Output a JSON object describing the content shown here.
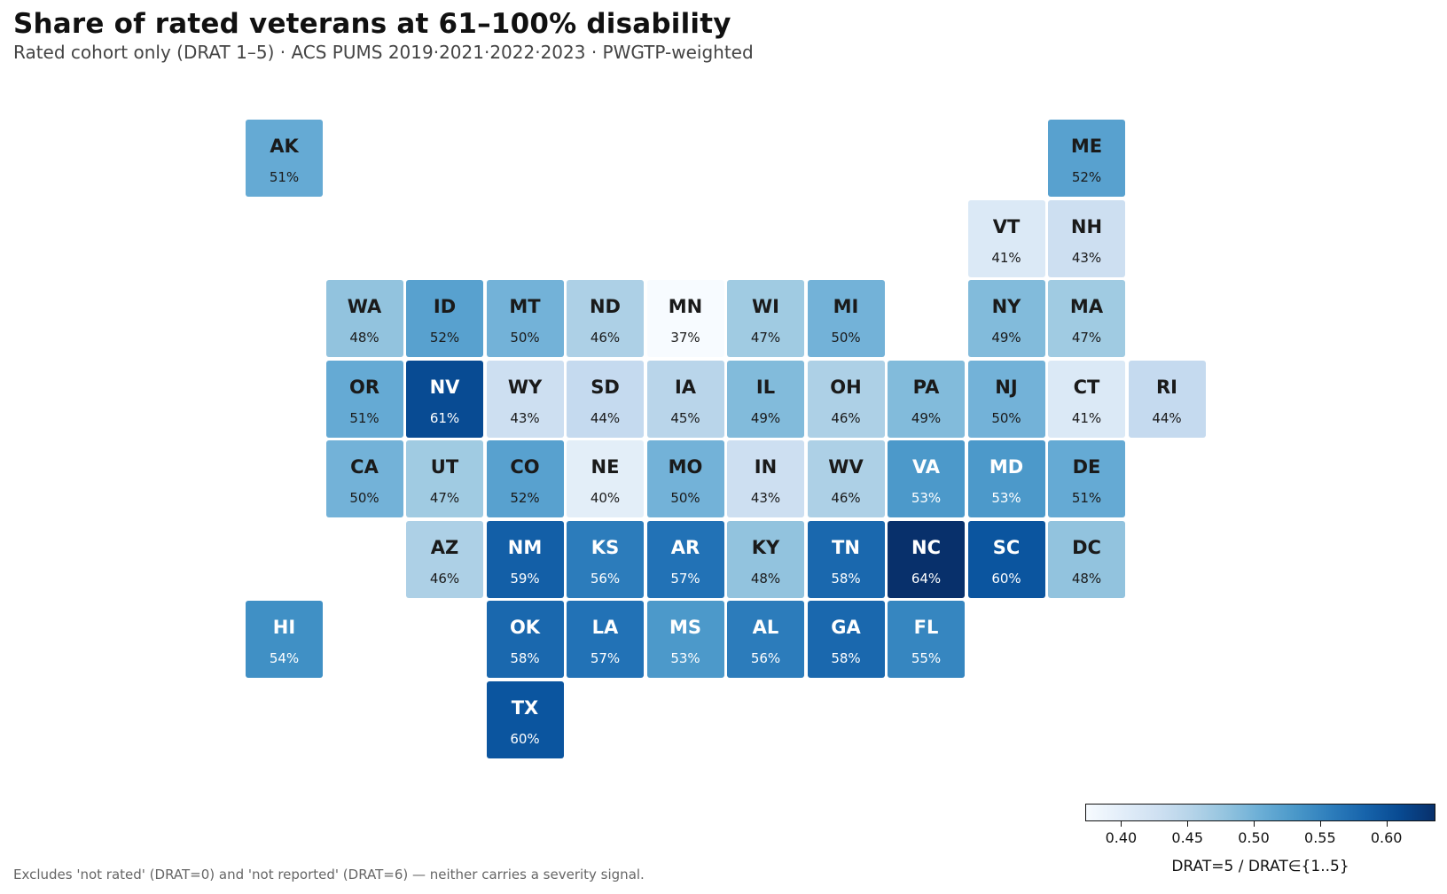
{
  "title": "Share of rated veterans at 61–100% disability",
  "subtitle": "Rated cohort only (DRAT 1–5) · ACS PUMS 2019·2021·2022·2023 · PWGTP-weighted",
  "footnote": "Excludes 'not rated' (DRAT=0) and 'not reported' (DRAT=6) — neither carries a severity signal.",
  "colorbar": {
    "label": "DRAT=5 / DRAT∈{1..5}",
    "min": 0.373,
    "max": 0.637,
    "ticks": [
      "0.40",
      "0.45",
      "0.50",
      "0.55",
      "0.60"
    ],
    "color_low": "#f7fbff",
    "color_high": "#08306b"
  },
  "chart_data": {
    "type": "heatmap",
    "layout": "tile-grid map of U.S. states",
    "states": [
      {
        "abbr": "AK",
        "pct_label": "51%",
        "value": 0.51,
        "row": 0,
        "col": 0
      },
      {
        "abbr": "ME",
        "pct_label": "52%",
        "value": 0.52,
        "row": 0,
        "col": 10
      },
      {
        "abbr": "VT",
        "pct_label": "41%",
        "value": 0.41,
        "row": 1,
        "col": 9
      },
      {
        "abbr": "NH",
        "pct_label": "43%",
        "value": 0.43,
        "row": 1,
        "col": 10
      },
      {
        "abbr": "WA",
        "pct_label": "48%",
        "value": 0.48,
        "row": 2,
        "col": 1
      },
      {
        "abbr": "ID",
        "pct_label": "52%",
        "value": 0.52,
        "row": 2,
        "col": 2
      },
      {
        "abbr": "MT",
        "pct_label": "50%",
        "value": 0.5,
        "row": 2,
        "col": 3
      },
      {
        "abbr": "ND",
        "pct_label": "46%",
        "value": 0.46,
        "row": 2,
        "col": 4
      },
      {
        "abbr": "MN",
        "pct_label": "37%",
        "value": 0.37,
        "row": 2,
        "col": 5
      },
      {
        "abbr": "WI",
        "pct_label": "47%",
        "value": 0.47,
        "row": 2,
        "col": 6
      },
      {
        "abbr": "MI",
        "pct_label": "50%",
        "value": 0.5,
        "row": 2,
        "col": 7
      },
      {
        "abbr": "NY",
        "pct_label": "49%",
        "value": 0.49,
        "row": 2,
        "col": 9
      },
      {
        "abbr": "MA",
        "pct_label": "47%",
        "value": 0.47,
        "row": 2,
        "col": 10
      },
      {
        "abbr": "OR",
        "pct_label": "51%",
        "value": 0.51,
        "row": 3,
        "col": 1
      },
      {
        "abbr": "NV",
        "pct_label": "61%",
        "value": 0.61,
        "row": 3,
        "col": 2
      },
      {
        "abbr": "WY",
        "pct_label": "43%",
        "value": 0.43,
        "row": 3,
        "col": 3
      },
      {
        "abbr": "SD",
        "pct_label": "44%",
        "value": 0.44,
        "row": 3,
        "col": 4
      },
      {
        "abbr": "IA",
        "pct_label": "45%",
        "value": 0.45,
        "row": 3,
        "col": 5
      },
      {
        "abbr": "IL",
        "pct_label": "49%",
        "value": 0.49,
        "row": 3,
        "col": 6
      },
      {
        "abbr": "OH",
        "pct_label": "46%",
        "value": 0.46,
        "row": 3,
        "col": 7
      },
      {
        "abbr": "PA",
        "pct_label": "49%",
        "value": 0.49,
        "row": 3,
        "col": 8
      },
      {
        "abbr": "NJ",
        "pct_label": "50%",
        "value": 0.5,
        "row": 3,
        "col": 9
      },
      {
        "abbr": "CT",
        "pct_label": "41%",
        "value": 0.41,
        "row": 3,
        "col": 10
      },
      {
        "abbr": "RI",
        "pct_label": "44%",
        "value": 0.44,
        "row": 3,
        "col": 11
      },
      {
        "abbr": "CA",
        "pct_label": "50%",
        "value": 0.5,
        "row": 4,
        "col": 1
      },
      {
        "abbr": "UT",
        "pct_label": "47%",
        "value": 0.47,
        "row": 4,
        "col": 2
      },
      {
        "abbr": "CO",
        "pct_label": "52%",
        "value": 0.52,
        "row": 4,
        "col": 3
      },
      {
        "abbr": "NE",
        "pct_label": "40%",
        "value": 0.4,
        "row": 4,
        "col": 4
      },
      {
        "abbr": "MO",
        "pct_label": "50%",
        "value": 0.5,
        "row": 4,
        "col": 5
      },
      {
        "abbr": "IN",
        "pct_label": "43%",
        "value": 0.43,
        "row": 4,
        "col": 6
      },
      {
        "abbr": "WV",
        "pct_label": "46%",
        "value": 0.46,
        "row": 4,
        "col": 7
      },
      {
        "abbr": "VA",
        "pct_label": "53%",
        "value": 0.53,
        "row": 4,
        "col": 8
      },
      {
        "abbr": "MD",
        "pct_label": "53%",
        "value": 0.53,
        "row": 4,
        "col": 9
      },
      {
        "abbr": "DE",
        "pct_label": "51%",
        "value": 0.51,
        "row": 4,
        "col": 10
      },
      {
        "abbr": "AZ",
        "pct_label": "46%",
        "value": 0.46,
        "row": 5,
        "col": 2
      },
      {
        "abbr": "NM",
        "pct_label": "59%",
        "value": 0.59,
        "row": 5,
        "col": 3
      },
      {
        "abbr": "KS",
        "pct_label": "56%",
        "value": 0.56,
        "row": 5,
        "col": 4
      },
      {
        "abbr": "AR",
        "pct_label": "57%",
        "value": 0.57,
        "row": 5,
        "col": 5
      },
      {
        "abbr": "KY",
        "pct_label": "48%",
        "value": 0.48,
        "row": 5,
        "col": 6
      },
      {
        "abbr": "TN",
        "pct_label": "58%",
        "value": 0.58,
        "row": 5,
        "col": 7
      },
      {
        "abbr": "NC",
        "pct_label": "64%",
        "value": 0.64,
        "row": 5,
        "col": 8
      },
      {
        "abbr": "SC",
        "pct_label": "60%",
        "value": 0.6,
        "row": 5,
        "col": 9
      },
      {
        "abbr": "DC",
        "pct_label": "48%",
        "value": 0.48,
        "row": 5,
        "col": 10
      },
      {
        "abbr": "HI",
        "pct_label": "54%",
        "value": 0.54,
        "row": 6,
        "col": 0
      },
      {
        "abbr": "OK",
        "pct_label": "58%",
        "value": 0.58,
        "row": 6,
        "col": 3
      },
      {
        "abbr": "LA",
        "pct_label": "57%",
        "value": 0.57,
        "row": 6,
        "col": 4
      },
      {
        "abbr": "MS",
        "pct_label": "53%",
        "value": 0.53,
        "row": 6,
        "col": 5
      },
      {
        "abbr": "AL",
        "pct_label": "56%",
        "value": 0.56,
        "row": 6,
        "col": 6
      },
      {
        "abbr": "GA",
        "pct_label": "58%",
        "value": 0.58,
        "row": 6,
        "col": 7
      },
      {
        "abbr": "FL",
        "pct_label": "55%",
        "value": 0.55,
        "row": 6,
        "col": 8
      },
      {
        "abbr": "TX",
        "pct_label": "60%",
        "value": 0.6,
        "row": 7,
        "col": 3
      }
    ]
  }
}
